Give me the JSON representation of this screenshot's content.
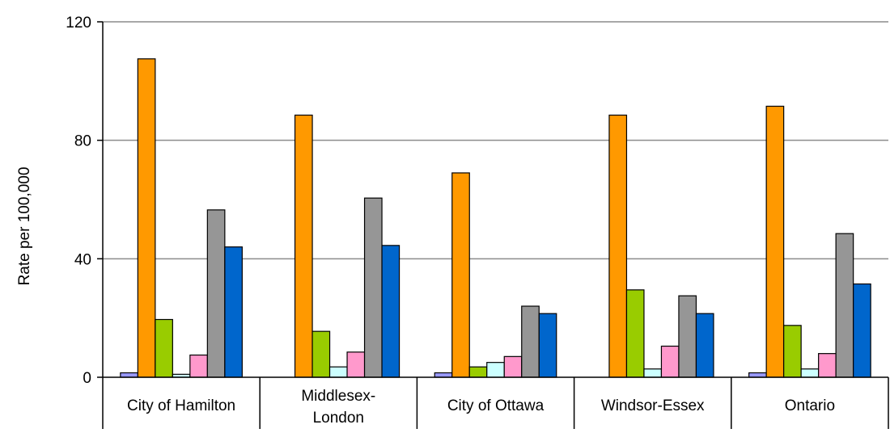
{
  "chart_data": {
    "type": "bar",
    "title": "",
    "xlabel": "",
    "ylabel": "Rate per 100,000",
    "ylim": [
      0,
      120
    ],
    "yticks": [
      0,
      40,
      80,
      120
    ],
    "grid": true,
    "legend": "none",
    "categories": [
      [
        "City of Hamilton"
      ],
      [
        "Middlesex-",
        "London"
      ],
      [
        "City of Ottawa"
      ],
      [
        "Windsor-Essex"
      ],
      [
        "Ontario"
      ]
    ],
    "series": [
      {
        "color": "#9999ff",
        "values": [
          1.5,
          0,
          1.5,
          0,
          1.5
        ]
      },
      {
        "color": "#ff9900",
        "values": [
          107.5,
          88.5,
          69,
          88.5,
          91.5
        ]
      },
      {
        "color": "#99cc00",
        "values": [
          19.5,
          15.5,
          3.5,
          29.5,
          17.5
        ]
      },
      {
        "color": "#ccffff",
        "values": [
          1,
          3.5,
          5,
          2.8,
          2.8
        ]
      },
      {
        "color": "#ff99cc",
        "values": [
          7.5,
          8.5,
          7,
          10.5,
          8
        ]
      },
      {
        "color": "#969696",
        "values": [
          56.5,
          60.5,
          24,
          27.5,
          48.5
        ]
      },
      {
        "color": "#0066cc",
        "values": [
          44,
          44.5,
          21.5,
          21.5,
          31.5
        ]
      }
    ]
  }
}
